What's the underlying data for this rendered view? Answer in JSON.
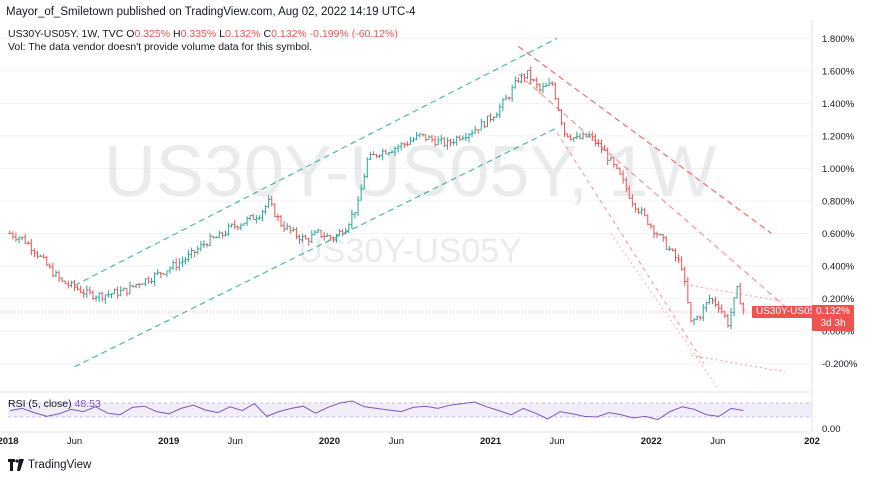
{
  "header": {
    "published": "Mayor_of_Smiletown published on TradingView.com, Aug 02, 2022 14:19 UTC-4",
    "symbol_line": "US30Y-US05Y, 1W, TVC",
    "ohlc": {
      "o_label": "O",
      "o": "0.325%",
      "h_label": "H",
      "h": "0.335%",
      "l_label": "L",
      "l": "0.132%",
      "c_label": "C",
      "c": "0.132%",
      "change": "-0.199% (-60.12%)"
    },
    "volume_note": "Vol: The data vendor doesn't provide volume data for this symbol."
  },
  "watermark": {
    "big": "US30Y-US05Y, 1W",
    "small": "US30Y-US05Y"
  },
  "last_price": {
    "symbol_badge": "US30Y-US05Y",
    "price": "0.132%",
    "countdown": "3d 3h"
  },
  "rsi": {
    "label": "RSI (5, close)",
    "value": "48.53"
  },
  "brand": "TradingView",
  "colors": {
    "up": "#26a69a",
    "down": "#ef5350",
    "rsi": "#7e57c2",
    "channel_up": "#26a69a",
    "channel_down": "#ef5350"
  },
  "chart_data": {
    "type": "candlestick",
    "interval": "1W",
    "y_axis": {
      "unit": "%",
      "range": [
        -0.35,
        1.9
      ],
      "ticks": [
        "1.800%",
        "1.600%",
        "1.400%",
        "1.200%",
        "1.000%",
        "0.800%",
        "0.600%",
        "0.400%",
        "0.200%",
        "0.000%",
        "-0.200%"
      ]
    },
    "x_axis": {
      "range": [
        "2018-01-01",
        "2023-01-01"
      ],
      "ticks": [
        {
          "label": "2018",
          "date": "2018-01-01"
        },
        {
          "label": "Jun",
          "date": "2018-06-01"
        },
        {
          "label": "2019",
          "date": "2019-01-01"
        },
        {
          "label": "Jun",
          "date": "2019-06-01"
        },
        {
          "label": "2020",
          "date": "2020-01-01"
        },
        {
          "label": "Jun",
          "date": "2020-06-01"
        },
        {
          "label": "2021",
          "date": "2021-01-01"
        },
        {
          "label": "Jun",
          "date": "2021-06-01"
        },
        {
          "label": "2022",
          "date": "2022-01-01"
        },
        {
          "label": "Jun",
          "date": "2022-06-01"
        },
        {
          "label": "202",
          "date": "2023-01-01"
        }
      ]
    },
    "close_series": [
      [
        "2018-01-05",
        0.6
      ],
      [
        "2018-02-02",
        0.57
      ],
      [
        "2018-03-02",
        0.5
      ],
      [
        "2018-04-06",
        0.38
      ],
      [
        "2018-05-04",
        0.3
      ],
      [
        "2018-06-01",
        0.27
      ],
      [
        "2018-06-29",
        0.23
      ],
      [
        "2018-07-27",
        0.22
      ],
      [
        "2018-08-24",
        0.23
      ],
      [
        "2018-09-28",
        0.25
      ],
      [
        "2018-10-26",
        0.3
      ],
      [
        "2018-11-23",
        0.33
      ],
      [
        "2018-12-21",
        0.37
      ],
      [
        "2019-01-25",
        0.42
      ],
      [
        "2019-02-22",
        0.47
      ],
      [
        "2019-03-29",
        0.55
      ],
      [
        "2019-04-26",
        0.58
      ],
      [
        "2019-05-24",
        0.64
      ],
      [
        "2019-06-28",
        0.68
      ],
      [
        "2019-07-26",
        0.72
      ],
      [
        "2019-08-16",
        0.79
      ],
      [
        "2019-09-13",
        0.66
      ],
      [
        "2019-10-11",
        0.6
      ],
      [
        "2019-11-08",
        0.56
      ],
      [
        "2019-12-06",
        0.6
      ],
      [
        "2020-01-10",
        0.57
      ],
      [
        "2020-02-07",
        0.64
      ],
      [
        "2020-03-06",
        0.78
      ],
      [
        "2020-03-27",
        1.05
      ],
      [
        "2020-04-24",
        1.1
      ],
      [
        "2020-05-22",
        1.12
      ],
      [
        "2020-06-19",
        1.15
      ],
      [
        "2020-07-24",
        1.2
      ],
      [
        "2020-08-28",
        1.17
      ],
      [
        "2020-09-25",
        1.15
      ],
      [
        "2020-10-23",
        1.2
      ],
      [
        "2020-11-20",
        1.23
      ],
      [
        "2020-12-18",
        1.28
      ],
      [
        "2021-01-15",
        1.35
      ],
      [
        "2021-02-12",
        1.45
      ],
      [
        "2021-03-05",
        1.55
      ],
      [
        "2021-03-26",
        1.58
      ],
      [
        "2021-04-23",
        1.48
      ],
      [
        "2021-05-21",
        1.52
      ],
      [
        "2021-06-18",
        1.22
      ],
      [
        "2021-07-16",
        1.18
      ],
      [
        "2021-08-13",
        1.2
      ],
      [
        "2021-09-17",
        1.1
      ],
      [
        "2021-10-22",
        0.95
      ],
      [
        "2021-11-19",
        0.8
      ],
      [
        "2021-12-17",
        0.7
      ],
      [
        "2022-01-14",
        0.6
      ],
      [
        "2022-02-11",
        0.5
      ],
      [
        "2022-03-11",
        0.4
      ],
      [
        "2022-04-01",
        0.05
      ],
      [
        "2022-04-22",
        0.1
      ],
      [
        "2022-05-13",
        0.2
      ],
      [
        "2022-06-03",
        0.16
      ],
      [
        "2022-06-24",
        0.05
      ],
      [
        "2022-07-15",
        0.25
      ],
      [
        "2022-07-29",
        0.132
      ]
    ],
    "rsi_series": [
      48,
      55,
      42,
      30,
      38,
      52,
      45,
      60,
      40,
      35,
      58,
      62,
      45,
      38,
      55,
      65,
      50,
      42,
      60,
      48,
      70,
      30,
      45,
      55,
      62,
      40,
      58,
      72,
      78,
      60,
      55,
      50,
      45,
      58,
      62,
      55,
      65,
      70,
      75,
      60,
      48,
      35,
      55,
      40,
      22,
      45,
      38,
      30,
      28,
      42,
      35,
      25,
      30,
      20,
      45,
      60,
      52,
      35,
      30,
      55,
      48.53
    ],
    "annotations": [
      "ascending channel lines (green dashed)",
      "descending channel lines (red dashed)"
    ]
  }
}
